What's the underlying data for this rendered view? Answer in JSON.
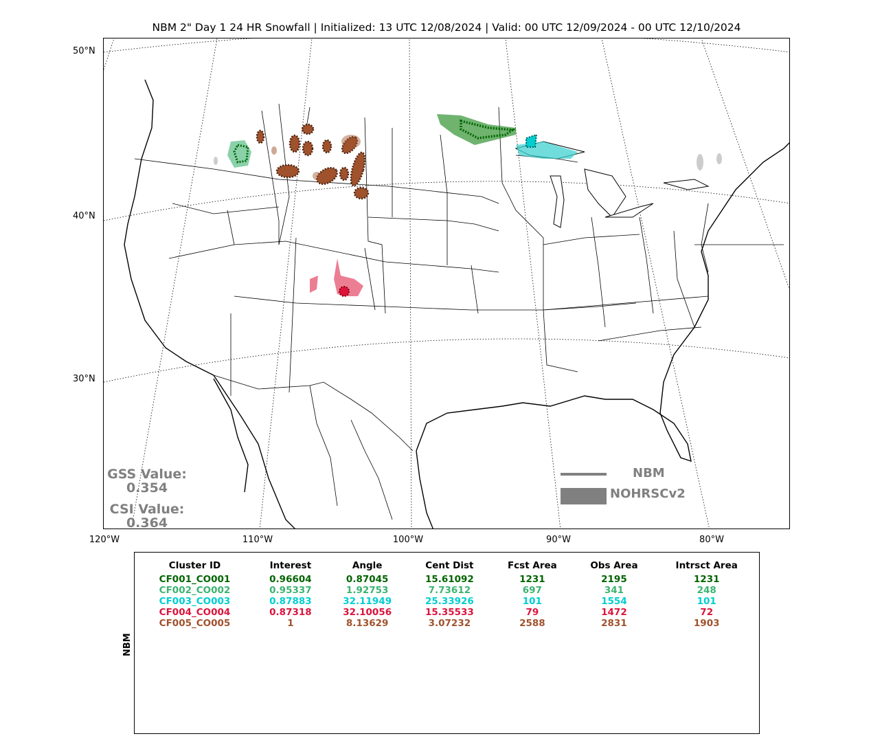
{
  "title": "NBM 2\" Day 1 24 HR Snowfall | Initialized: 13 UTC 12/08/2024 | Valid: 00 UTC 12/09/2024 - 00 UTC 12/10/2024",
  "map": {
    "lat_labels": [
      "50°N",
      "40°N",
      "30°N"
    ],
    "lon_labels": [
      "120°W",
      "110°W",
      "100°W",
      "90°W",
      "80°W"
    ],
    "row_label": "NBM"
  },
  "stats": {
    "gss_label": "GSS Value:",
    "gss_value": "0.354",
    "csi_label": "CSI Value:",
    "csi_value": "0.364"
  },
  "legend": {
    "line_label": "NBM",
    "fill_label": "NOHRSCv2",
    "color": "#808080"
  },
  "table": {
    "headers": [
      "Cluster ID",
      "Interest",
      "Angle",
      "Cent Dist",
      "Fcst Area",
      "Obs Area",
      "Intrsct Area"
    ],
    "rows": [
      {
        "color": "#006400",
        "cells": [
          "CF001_CO001",
          "0.96604",
          "0.87045",
          "15.61092",
          "1231",
          "2195",
          "1231"
        ]
      },
      {
        "color": "#3cb371",
        "cells": [
          "CF002_CO002",
          "0.95337",
          "1.92753",
          "7.73612",
          "697",
          "341",
          "248"
        ]
      },
      {
        "color": "#00ced1",
        "cells": [
          "CF003_CO003",
          "0.87883",
          "32.11949",
          "25.33926",
          "101",
          "1554",
          "101"
        ]
      },
      {
        "color": "#dc143c",
        "cells": [
          "CF004_CO004",
          "0.87318",
          "32.10056",
          "15.35533",
          "79",
          "1472",
          "72"
        ]
      },
      {
        "color": "#a0522d",
        "cells": [
          "CF005_CO005",
          "1",
          "8.13629",
          "3.07232",
          "2588",
          "2831",
          "1903"
        ]
      }
    ]
  }
}
